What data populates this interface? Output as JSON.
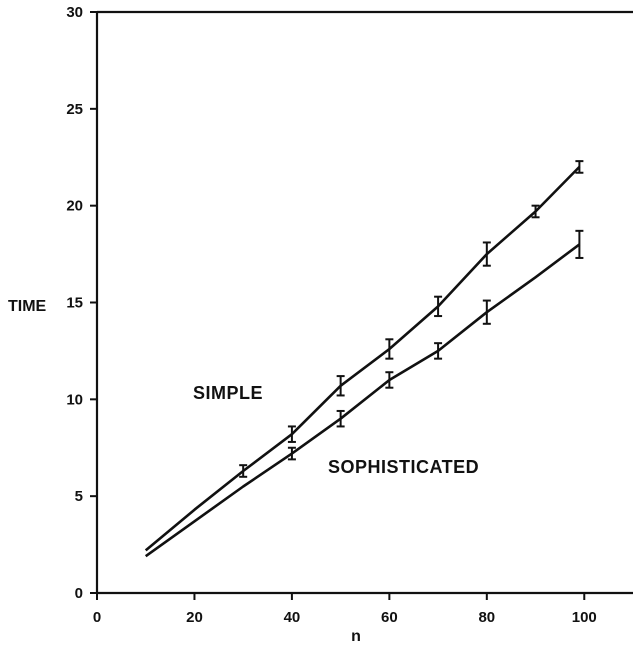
{
  "chart_data": {
    "type": "line",
    "xlabel": "n",
    "ylabel": "TIME",
    "xlim": [
      0,
      110
    ],
    "ylim": [
      0,
      30
    ],
    "x_ticks": [
      0,
      20,
      40,
      60,
      80,
      100
    ],
    "y_ticks": [
      0,
      5,
      10,
      15,
      20,
      25,
      30
    ],
    "grid": false,
    "series": [
      {
        "name": "SIMPLE",
        "x": [
          10,
          20,
          30,
          40,
          50,
          60,
          70,
          80,
          90,
          99
        ],
        "y": [
          2.2,
          4.3,
          6.3,
          8.2,
          10.7,
          12.6,
          14.8,
          17.5,
          19.7,
          22.0
        ],
        "err": [
          0,
          0,
          0.3,
          0.4,
          0.5,
          0.5,
          0.5,
          0.6,
          0.3,
          0.3
        ]
      },
      {
        "name": "SOPHISTICATED",
        "x": [
          10,
          20,
          30,
          40,
          50,
          60,
          70,
          80,
          90,
          99
        ],
        "y": [
          1.9,
          3.7,
          5.5,
          7.2,
          9.0,
          11.0,
          12.5,
          14.5,
          16.3,
          18.0
        ],
        "err": [
          0,
          0,
          0,
          0.3,
          0.4,
          0.4,
          0.4,
          0.6,
          0,
          0.7
        ]
      }
    ]
  }
}
